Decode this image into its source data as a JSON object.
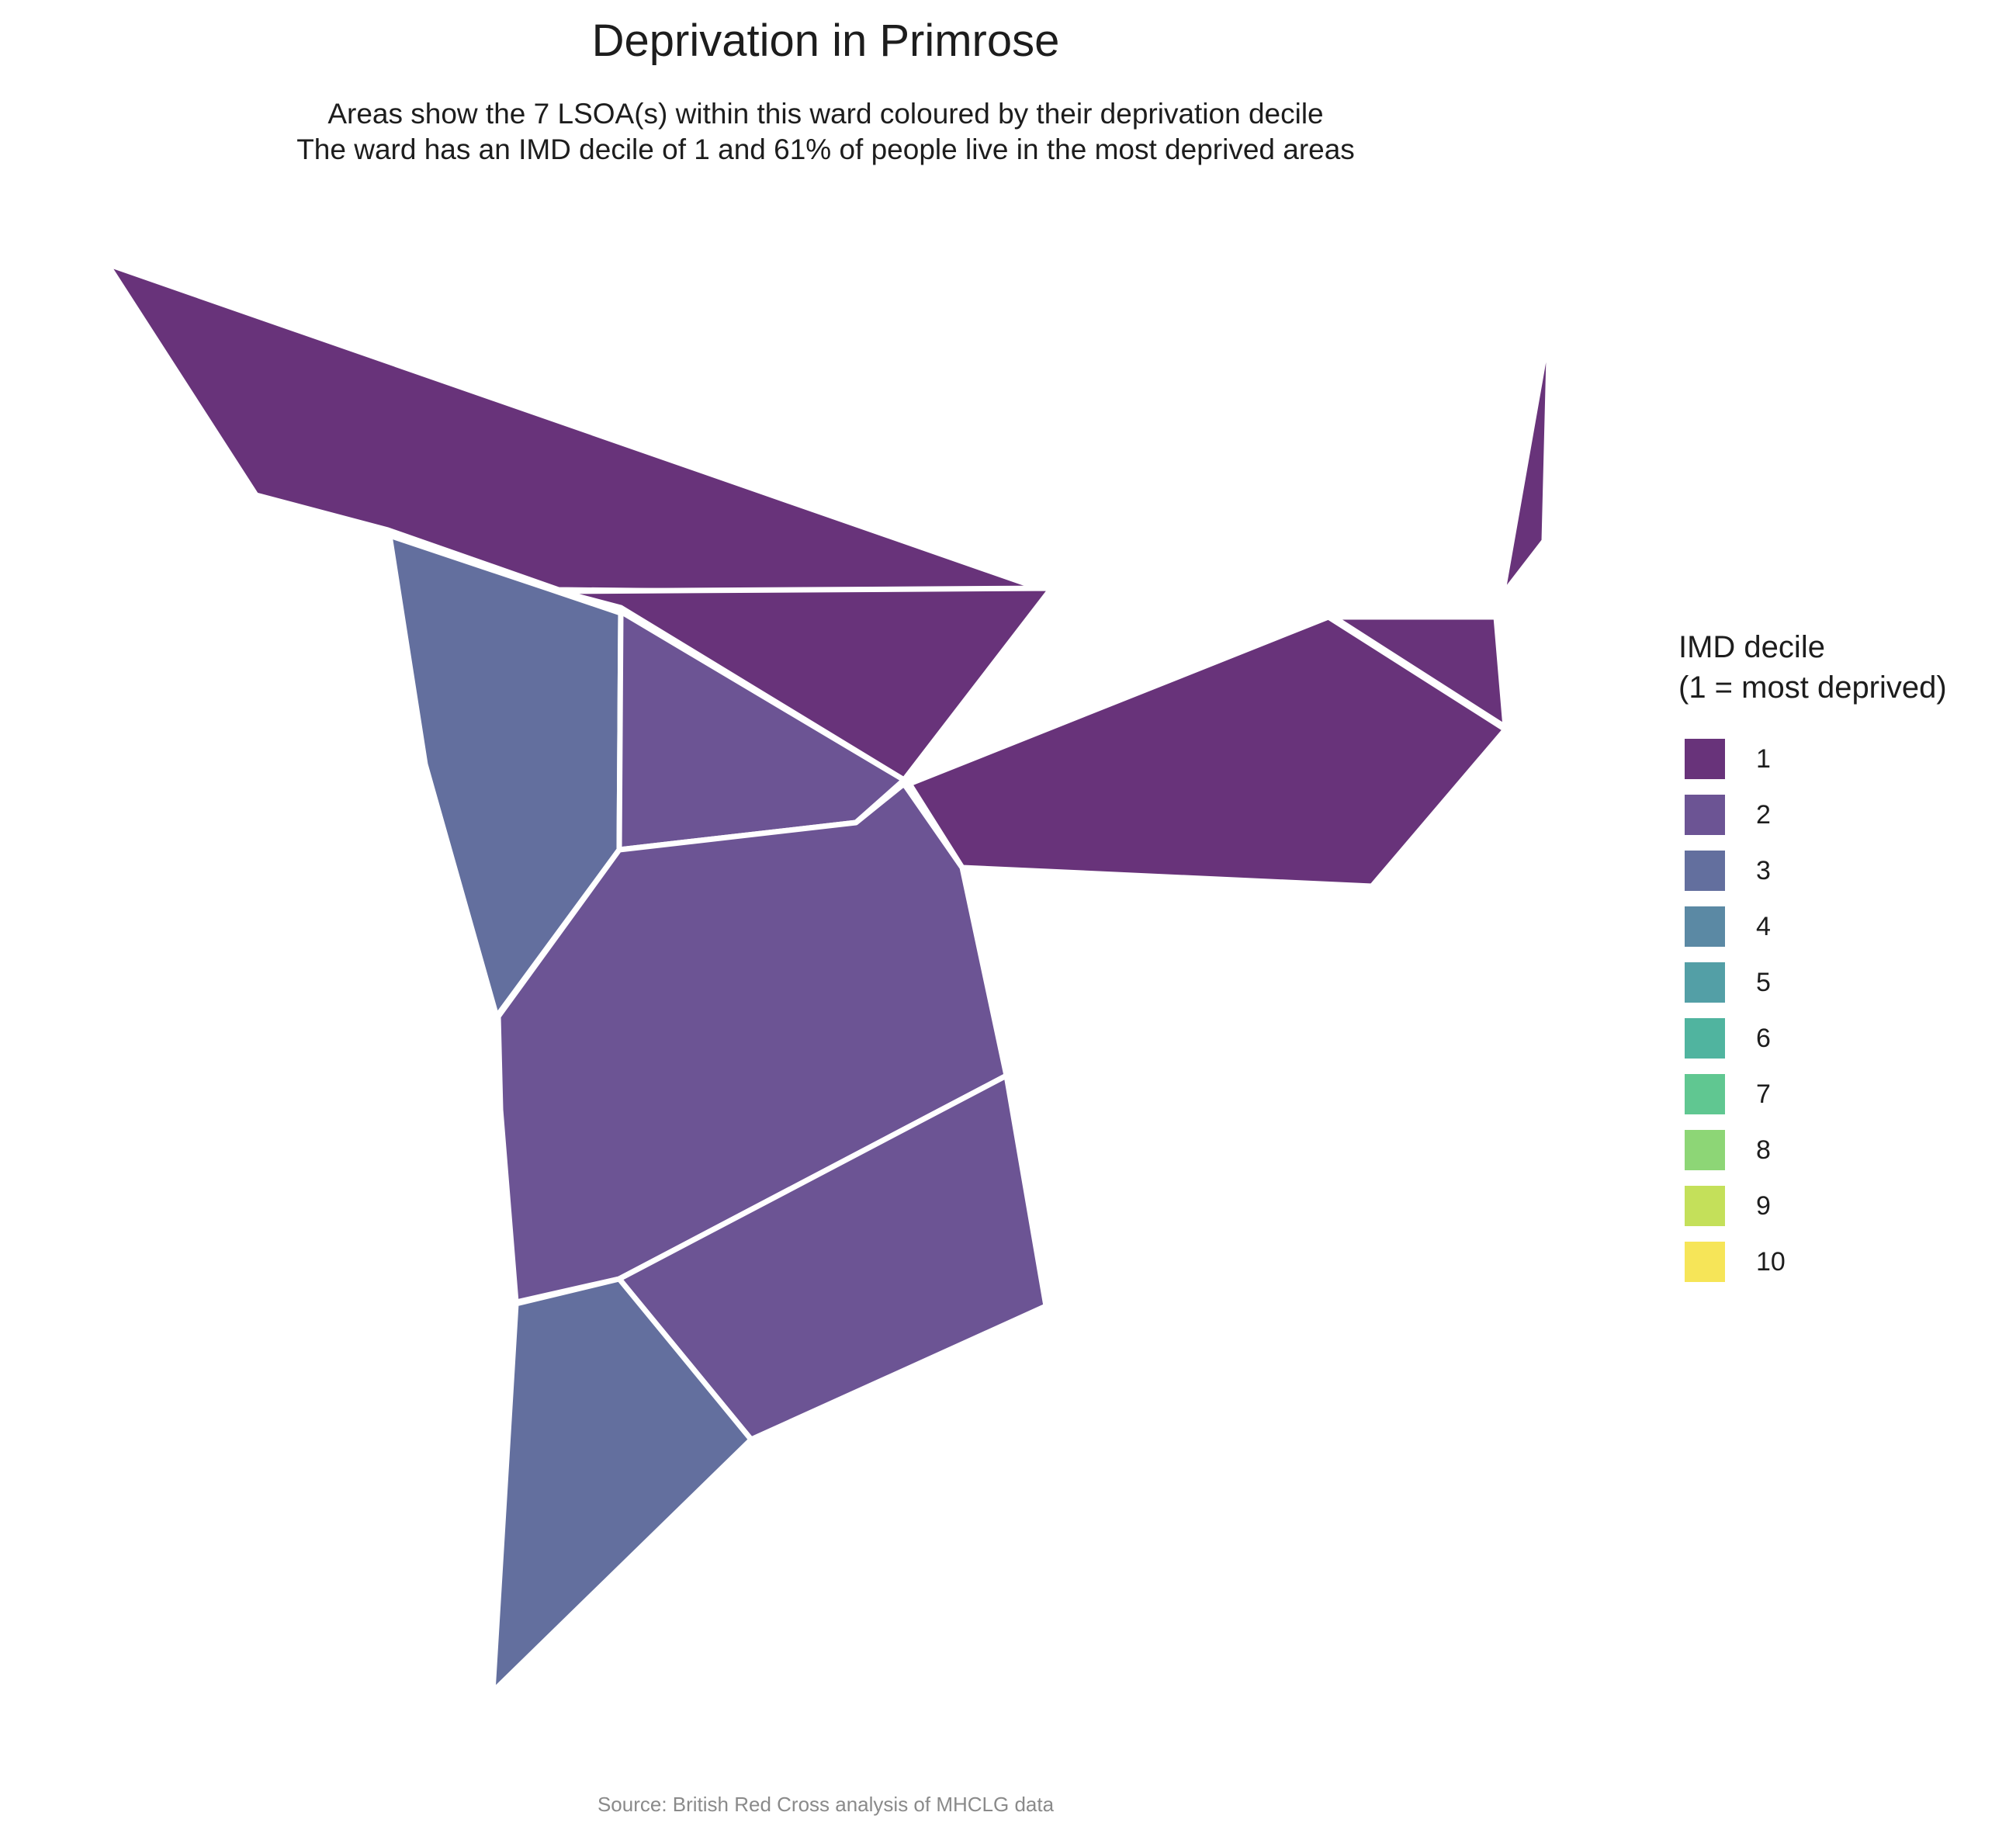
{
  "title": "Deprivation in Primrose",
  "subtitle": {
    "line1": "Areas show the 7 LSOA(s) within this ward coloured by their deprivation decile",
    "line2": "The ward has an IMD decile of 1 and 61% of people live in the most deprived areas"
  },
  "legend": {
    "title_line1": "IMD decile",
    "title_line2": "(1 = most deprived)",
    "items": [
      {
        "label": "1",
        "color": "#68337A"
      },
      {
        "label": "2",
        "color": "#6C5494"
      },
      {
        "label": "3",
        "color": "#636F9E"
      },
      {
        "label": "4",
        "color": "#5B89A4"
      },
      {
        "label": "5",
        "color": "#539FA6"
      },
      {
        "label": "6",
        "color": "#50B49F"
      },
      {
        "label": "7",
        "color": "#60C791"
      },
      {
        "label": "8",
        "color": "#8DD676"
      },
      {
        "label": "9",
        "color": "#C4E05A"
      },
      {
        "label": "10",
        "color": "#F6E558"
      }
    ]
  },
  "source": "Source: British Red Cross analysis of MHCLG data",
  "chart_data": {
    "type": "choropleth",
    "regions": [
      {
        "id": "north-west",
        "decile": 1
      },
      {
        "id": "north-central",
        "decile": 1
      },
      {
        "id": "east",
        "decile": 1
      },
      {
        "id": "east-small",
        "decile": 1
      },
      {
        "id": "far-east-sliver",
        "decile": 1
      },
      {
        "id": "west",
        "decile": 3
      },
      {
        "id": "central",
        "decile": 2
      },
      {
        "id": "central-north",
        "decile": 2
      },
      {
        "id": "south-east",
        "decile": 2
      },
      {
        "id": "south",
        "decile": 3
      }
    ]
  }
}
